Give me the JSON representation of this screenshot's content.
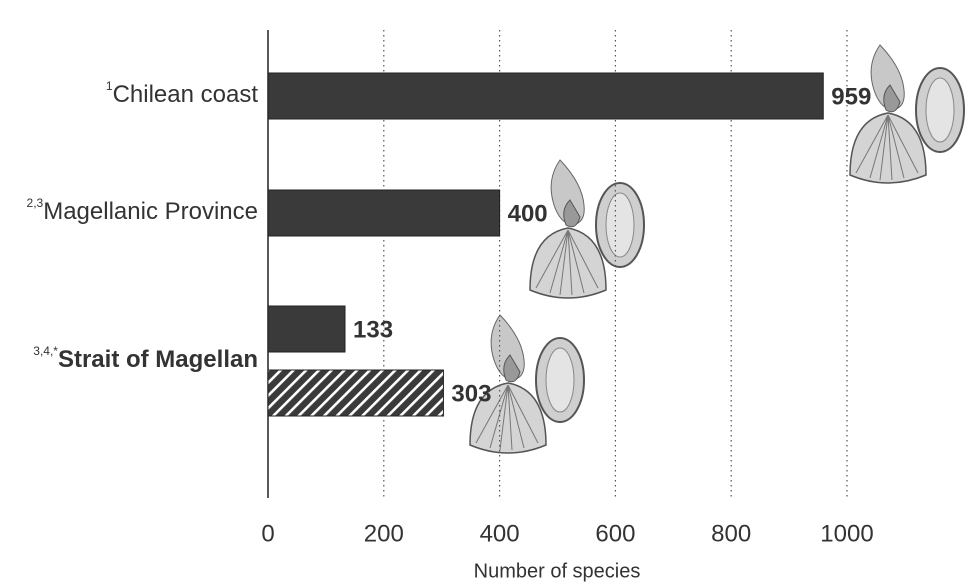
{
  "chart_data": {
    "type": "hbar",
    "categories": [
      "Chilean coast",
      "Magellanic Province",
      "Strait of Magellan"
    ],
    "category_notes": [
      "1",
      "2,3",
      "3,4,*"
    ],
    "bold_category": 2,
    "series": [
      {
        "color": "#3a3a3a",
        "pattern": "solid",
        "values": [
          959,
          400,
          133
        ]
      },
      {
        "color": "#3a3a3a",
        "pattern": "hatch",
        "values": [
          null,
          null,
          303
        ]
      }
    ],
    "xlabel": "Number of species",
    "xlim": [
      0,
      1000
    ],
    "xticks": [
      0,
      200,
      400,
      600,
      800,
      1000
    ],
    "grid": true
  }
}
